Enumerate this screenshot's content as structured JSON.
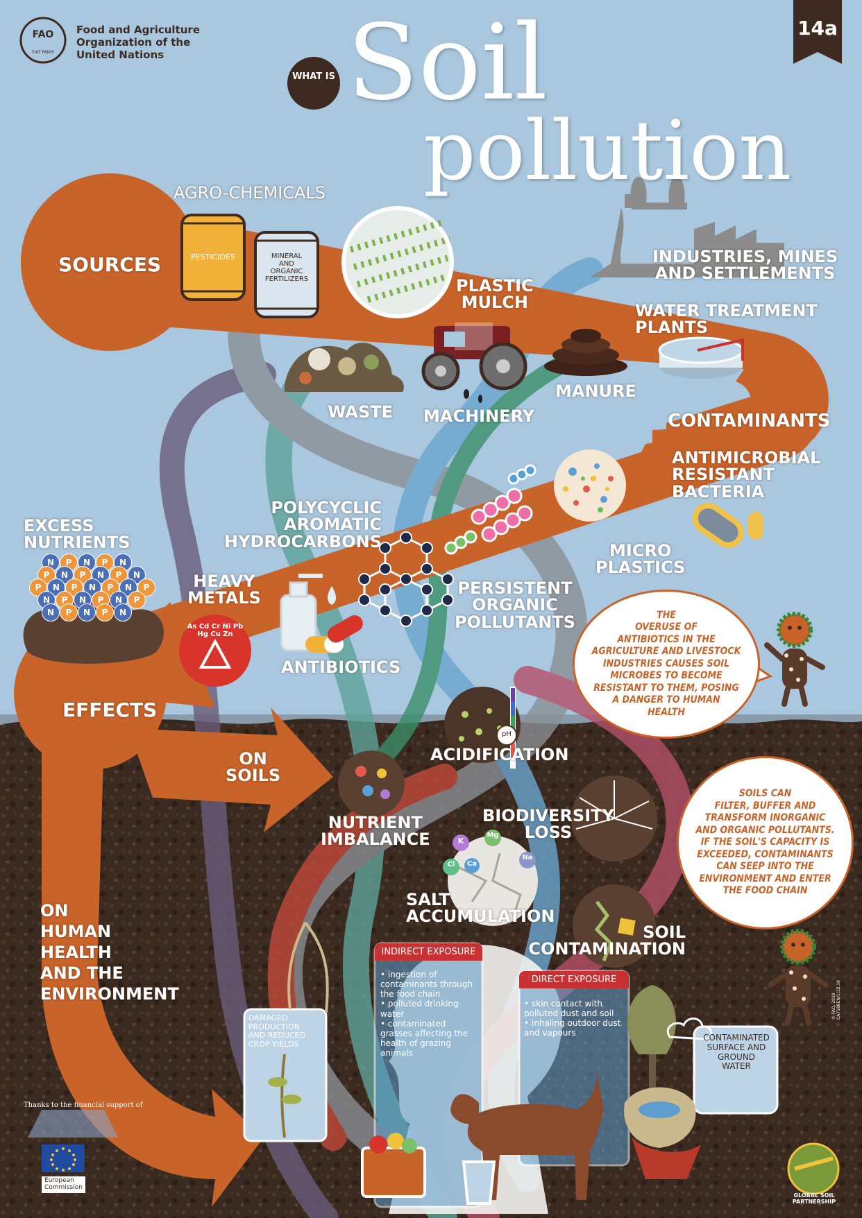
{
  "org": {
    "acronym": "FAO",
    "seal_text": "FIAT PANIS",
    "name": "Food and Agriculture\nOrganization of the\nUnited Nations"
  },
  "badge": "14a",
  "title": {
    "prefix": "WHAT IS",
    "line1": "Soil",
    "line2": "pollution"
  },
  "sources": {
    "heading": "SOURCES",
    "agrochemicals": "AGRO-CHEMICALS",
    "pesticides": "PESTICIDES",
    "fertilizers": "MINERAL\nAND\nORGANIC\nFERTILIZERS",
    "plastic_mulch": "PLASTIC\nMULCH",
    "industries": "INDUSTRIES, MINES\nAND SETTLEMENTS",
    "water_treatment": "WATER TREATMENT\nPLANTS",
    "waste": "WASTE",
    "machinery": "MACHINERY",
    "manure": "MANURE"
  },
  "contaminants": {
    "heading": "CONTAMINANTS",
    "amr": "ANTIMICROBIAL\nRESISTANT\nBACTERIA",
    "microplastics": "MICRO\nPLASTICS",
    "pops": "PERSISTENT\nORGANIC\nPOLLUTANTS",
    "pah": "POLYCYCLIC\nAROMATIC\nHYDROCARBONS",
    "heavy_metals": "HEAVY\nMETALS",
    "metal_symbols": "As Cd Cr Ni Pb Hg Cu Zn",
    "excess_nutrients": "EXCESS\nNUTRIENTS",
    "nutrient_letter_n": "N",
    "nutrient_letter_p": "P",
    "antibiotics": "ANTIBIOTICS"
  },
  "effects": {
    "heading": "EFFECTS",
    "on_soils": "ON\nSOILS",
    "on_health": "ON\nHUMAN\nHEALTH\nAND THE\nENVIRONMENT",
    "nutrient_imbalance": "NUTRIENT\nIMBALANCE",
    "acidification": "ACIDIFICATION",
    "ph": "pH",
    "biodiversity_loss": "BIODIVERSITY\nLOSS",
    "salt_accumulation": "SALT\nACCUMULATION",
    "salt_ions": [
      "K",
      "Mg",
      "Cl",
      "Ca",
      "Na"
    ],
    "soil_contamination": "SOIL\nCONTAMINATION"
  },
  "bubbles": {
    "antibiotics": "THE\nOVERUSE OF\nANTIBIOTICS IN THE\nAGRICULTURE AND LIVESTOCK\nINDUSTRIES CAUSES SOIL\nMICROBES TO BECOME\nRESISTANT TO THEM, POSING\nA DANGER TO HUMAN\nHEALTH",
    "filter": "SOILS CAN\nFILTER, BUFFER AND\nTRANSFORM INORGANIC\nAND ORGANIC POLLUTANTS.\nIF THE SOIL'S CAPACITY IS\nEXCEEDED, CONTAMINANTS\nCAN SEEP INTO THE\nENVIRONMENT AND ENTER\nTHE FOOD CHAIN"
  },
  "exposure": {
    "indirect": {
      "title": "INDIRECT EXPOSURE",
      "items": [
        "• ingestion of contaminants through the food chain",
        "• polluted drinking water",
        "• contaminated grasses affecting the health of grazing animals"
      ]
    },
    "direct": {
      "title": "DIRECT EXPOSURE",
      "items": [
        "• skin contact with polluted dust and soil",
        "• inhaling outdoor dust and vapours"
      ]
    }
  },
  "damaged_crops": "DAMAGED\nPRODUCTION\nAND REDUCED\nCROP YIELDS",
  "water": "CONTAMINATED\nSURFACE AND\nGROUND\nWATER",
  "credits": {
    "thanks": "Thanks to the financial support of",
    "eu": "European\nCommission",
    "gsp": "GLOBAL SOIL\nPARTNERSHIP",
    "code": "© FAO, 2019\nCA7186EN/1/12.19"
  },
  "colors": {
    "sky": "#a9c7de",
    "orange": "#c8632a",
    "soil": "#3a2a20",
    "red": "#c83232",
    "white": "#ffffff"
  }
}
